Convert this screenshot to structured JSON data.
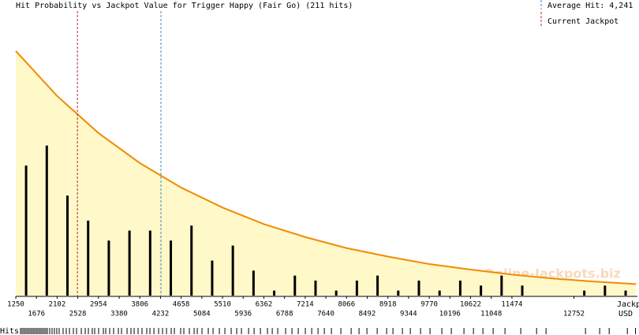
{
  "chart_data": {
    "type": "histogram",
    "title": "Hit Probability vs Jackpot Value for Trigger Happy (Fair Go) (211 hits)",
    "x_label": [
      "Jackpot,",
      "USD"
    ],
    "bins": [
      1250,
      1676,
      2102,
      2528,
      2954,
      3380,
      3806,
      4232,
      4658,
      5084,
      5510,
      5936,
      6362,
      6788,
      7214,
      7640,
      8066,
      8492,
      8918,
      9344,
      9770,
      10196,
      10622,
      11048,
      11474,
      11900,
      12326,
      12752,
      13178,
      13604,
      14030
    ],
    "counts": [
      26,
      30,
      20,
      15,
      11,
      13,
      13,
      11,
      14,
      7,
      10,
      5,
      1,
      4,
      3,
      1,
      3,
      4,
      1,
      3,
      1,
      3,
      2,
      4,
      2,
      0,
      0,
      1,
      2,
      1
    ],
    "bar_color": "#000000",
    "xlim": [
      1250,
      14060
    ],
    "ylim": [
      0,
      58
    ],
    "xticks": [
      1250,
      1676,
      2102,
      2528,
      2954,
      3380,
      3806,
      4232,
      4658,
      5084,
      5510,
      5936,
      6362,
      6788,
      7214,
      7640,
      8066,
      8492,
      8918,
      9344,
      9770,
      10196,
      10622,
      11048,
      11474,
      12752
    ],
    "curve": {
      "color": "#f08c00",
      "fill": "#fff8c8",
      "x": [
        1250,
        2102,
        2954,
        3806,
        4658,
        5510,
        6362,
        7214,
        8066,
        8918,
        9770,
        10622,
        11474,
        12326,
        13178,
        14030
      ],
      "values": [
        48.9,
        39.9,
        32.5,
        26.5,
        21.6,
        17.6,
        14.3,
        11.7,
        9.5,
        7.8,
        6.3,
        5.2,
        4.2,
        3.4,
        2.8,
        2.3
      ]
    },
    "average_hit": {
      "value": 4241,
      "label": "Average Hit: 4,241",
      "color": "#3c8cc8"
    },
    "current_jackpot": {
      "value": 2520,
      "label": "Current Jackpot",
      "color": "#b4283c"
    },
    "watermark": "Online-Jackpots.biz",
    "rug_label": "Hits",
    "rug": [
      1348,
      1380,
      1413,
      1445,
      1478,
      1510,
      1543,
      1575,
      1608,
      1640,
      1673,
      1705,
      1738,
      1770,
      1803,
      1835,
      1868,
      1900,
      1949,
      1998,
      2046,
      2095,
      2144,
      2225,
      2290,
      2356,
      2437,
      2502,
      2600,
      2681,
      2746,
      2827,
      2876,
      2957,
      3055,
      3104,
      3185,
      3266,
      3364,
      3429,
      3543,
      3624,
      3689,
      3770,
      3851,
      3949,
      4014,
      4096,
      4193,
      4274,
      4356,
      4453,
      4518,
      4648,
      4713,
      4827,
      4925,
      4990,
      5087,
      5217,
      5315,
      5445,
      5559,
      5689,
      5803,
      5900,
      6047,
      6161,
      6291,
      6437,
      6535,
      6648,
      6811,
      6941,
      7071,
      7217,
      7348,
      7478,
      7608,
      7754,
      7949,
      8161,
      8323,
      8486,
      8697,
      8892,
      9022,
      9217,
      9380,
      9591,
      9786,
      10030,
      10225,
      10485,
      10681,
      10876,
      11087,
      11331,
      11656,
      11982,
      12177,
      12990,
      13282,
      13478,
      13852,
      14020
    ]
  }
}
